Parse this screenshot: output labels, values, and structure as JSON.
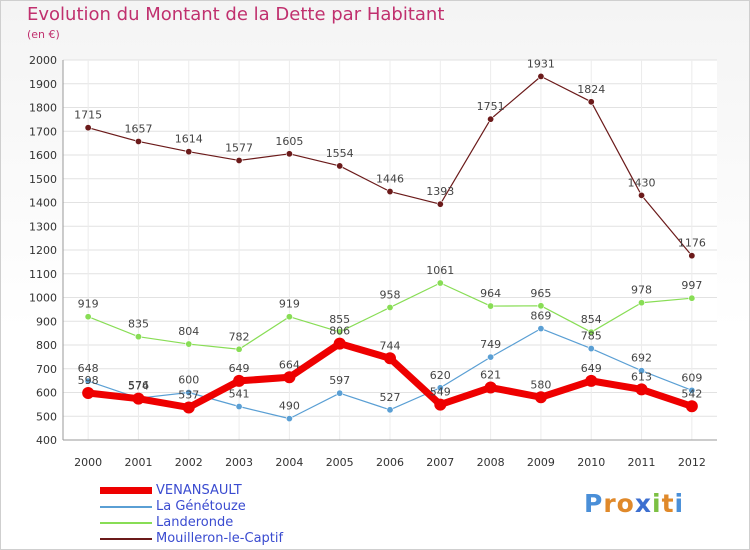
{
  "title": "Evolution du Montant de la Dette par Habitant",
  "subtitle": "(en €)",
  "logo": {
    "text": "Proxiti",
    "letter_colors": [
      "#4a8fd8",
      "#e0892a",
      "#e0892a",
      "#3d6fd0",
      "#7cc043",
      "#e0892a",
      "#4a8fd8"
    ]
  },
  "chart_data": {
    "type": "line",
    "title": "Evolution du Montant de la Dette par Habitant",
    "subtitle": "(en €)",
    "xlabel": "",
    "ylabel": "",
    "categories": [
      "2000",
      "2001",
      "2002",
      "2003",
      "2004",
      "2005",
      "2006",
      "2007",
      "2008",
      "2009",
      "2010",
      "2011",
      "2012"
    ],
    "ylim": [
      400,
      2000
    ],
    "yticks": [
      400,
      500,
      600,
      700,
      800,
      900,
      1000,
      1100,
      1200,
      1300,
      1400,
      1500,
      1600,
      1700,
      1800,
      1900,
      2000
    ],
    "grid": true,
    "legend": "bottom-left",
    "series": [
      {
        "name": "VENANSAULT",
        "color": "#ee0000",
        "values": [
          598,
          574,
          537,
          649,
          664,
          806,
          744,
          549,
          621,
          580,
          649,
          613,
          542
        ]
      },
      {
        "name": "La Génétouze",
        "color": "#5a9fd4",
        "values": [
          648,
          576,
          600,
          541,
          490,
          597,
          527,
          620,
          749,
          869,
          785,
          692,
          609
        ]
      },
      {
        "name": "Landeronde",
        "color": "#88dd55",
        "values": [
          919,
          835,
          804,
          782,
          919,
          855,
          958,
          1061,
          964,
          965,
          854,
          978,
          997
        ]
      },
      {
        "name": "Mouilleron-le-Captif",
        "color": "#6b1a1a",
        "values": [
          1715,
          1657,
          1614,
          1577,
          1605,
          1554,
          1446,
          1393,
          1751,
          1931,
          1824,
          1430,
          1176
        ]
      }
    ]
  }
}
